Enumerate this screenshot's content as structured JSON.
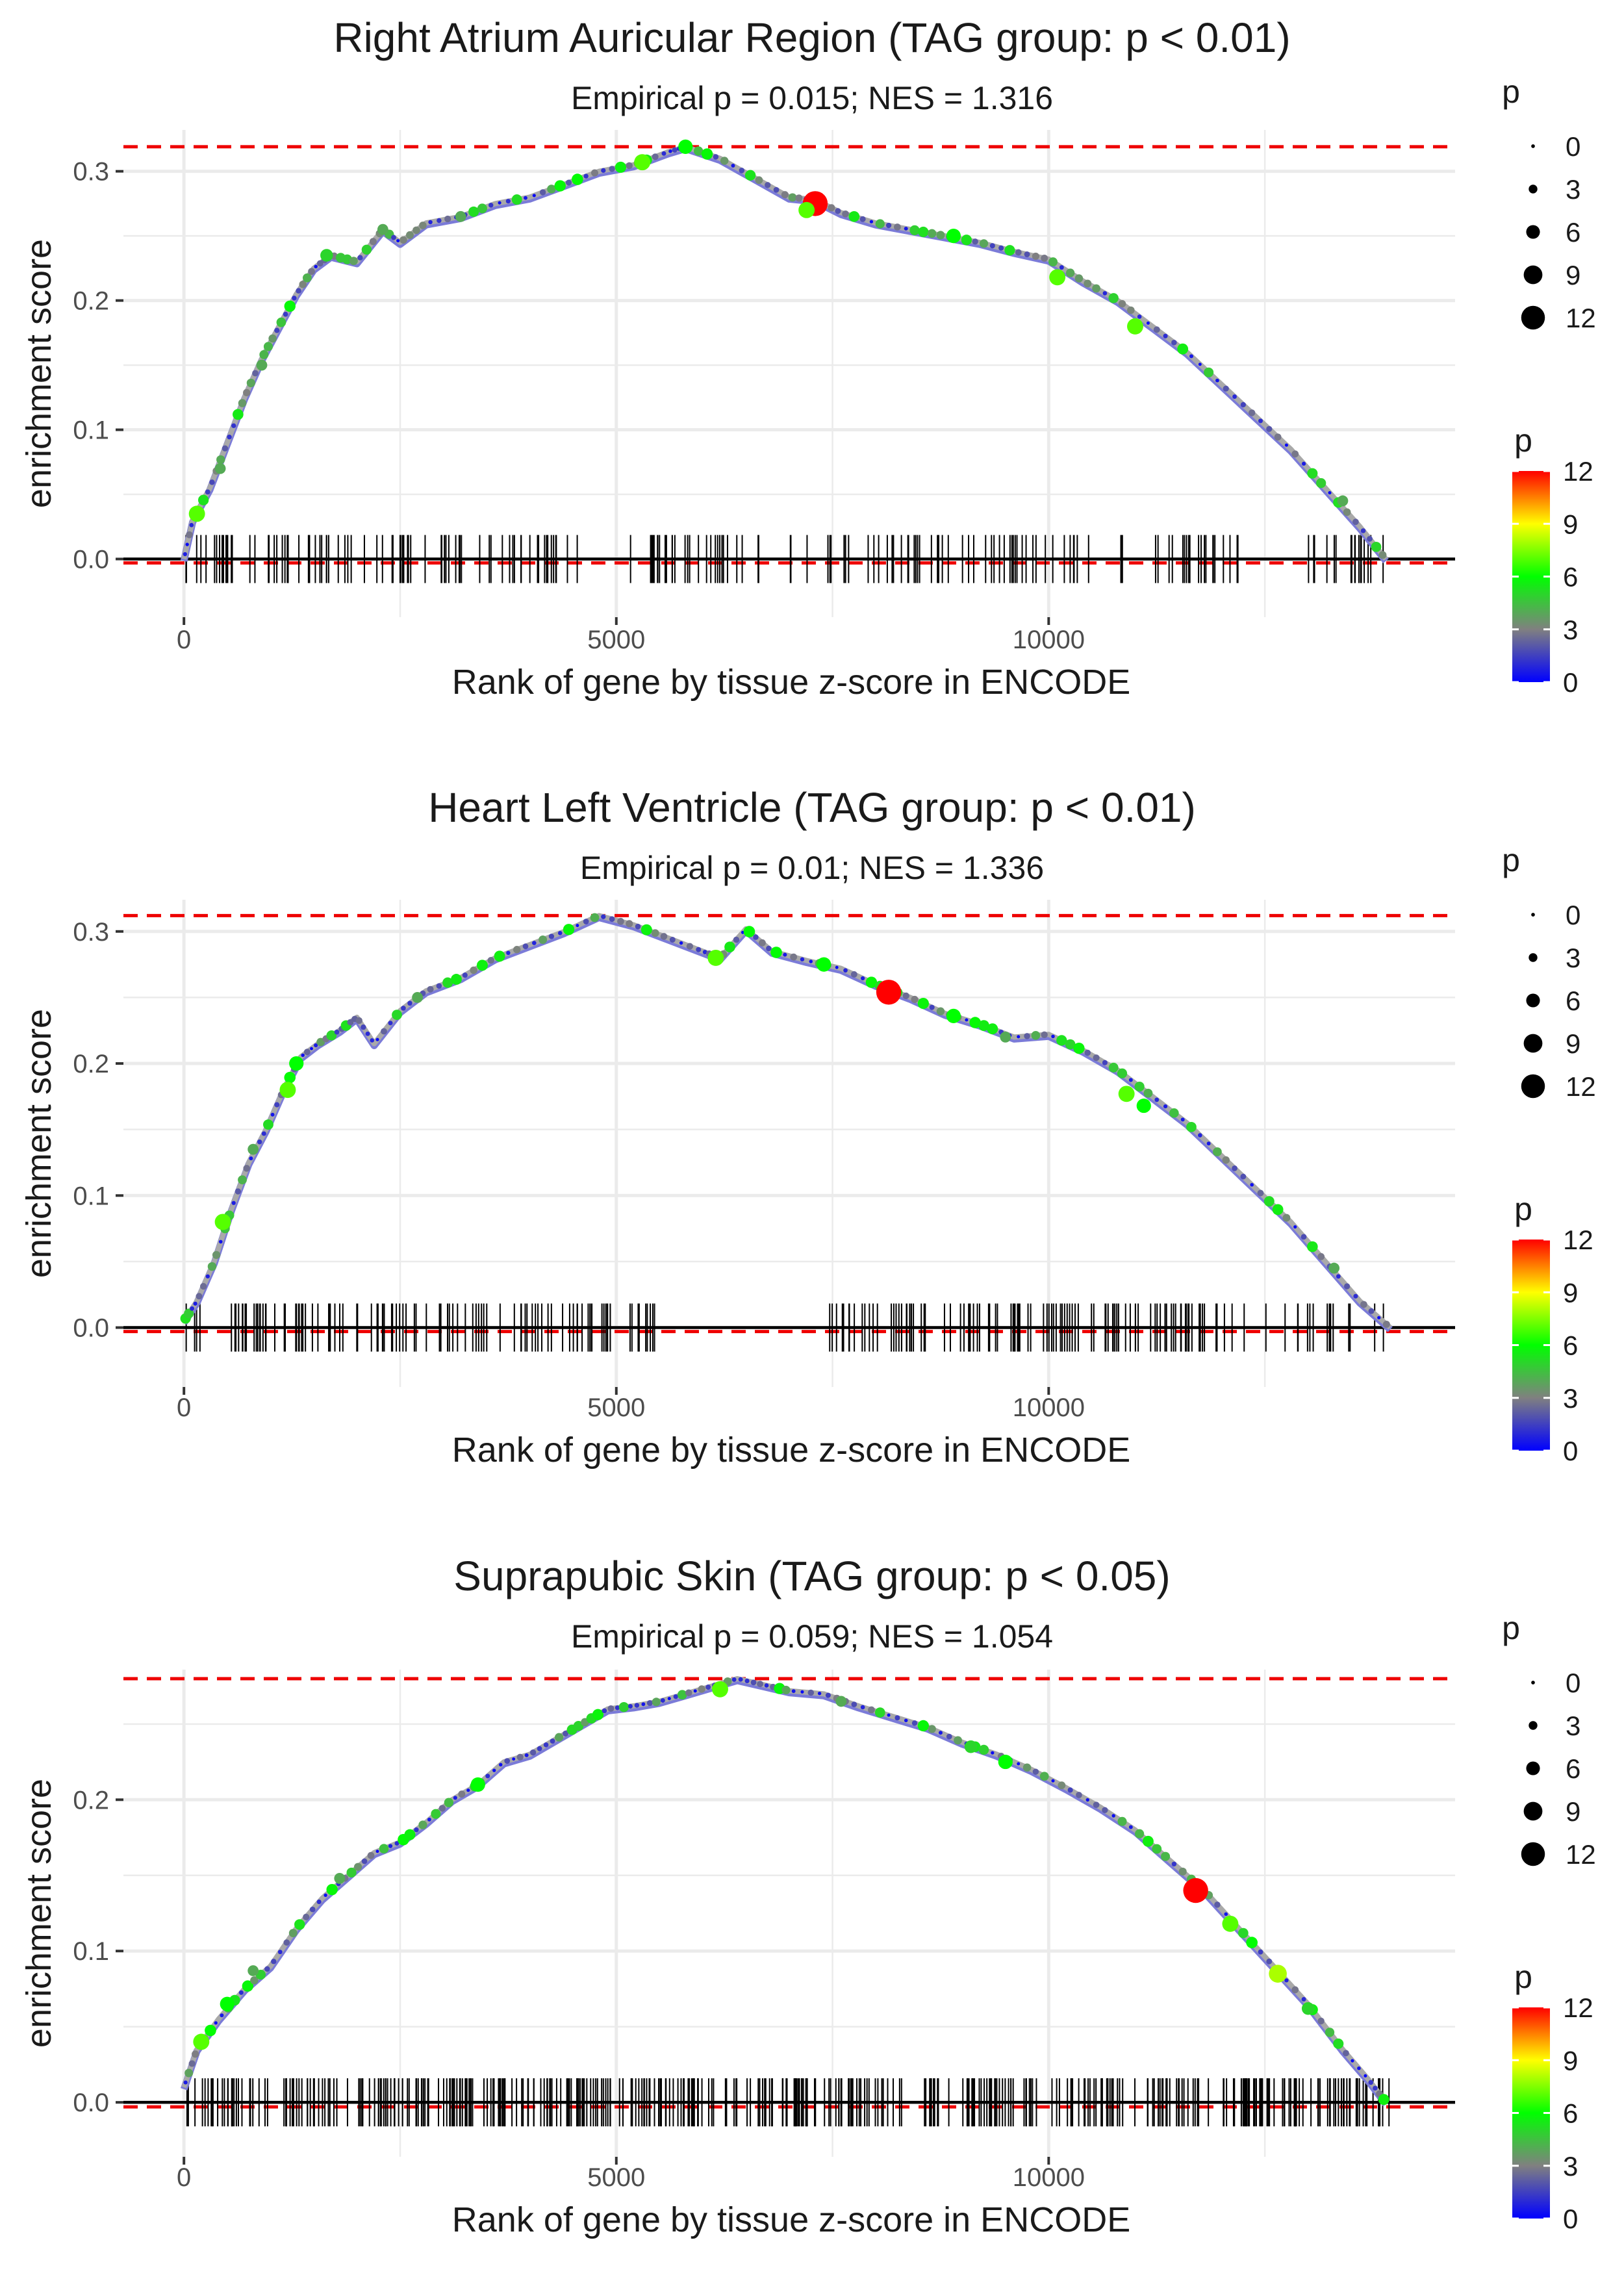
{
  "chart_data": [
    {
      "type": "line",
      "title": "Right Atrium Auricular Region (TAG group: p < 0.01)",
      "subtitle": "Empirical p = 0.015; NES = 1.316",
      "xlabel": "Rank of gene by tissue z-score in ENCODE",
      "ylabel": "enrichment score",
      "xlim": [
        -700,
        14700
      ],
      "ylim": [
        -0.045,
        0.332
      ],
      "x_ticks": [
        0,
        5000,
        10000
      ],
      "x_tick_labels": [
        "0",
        "5000",
        "10000"
      ],
      "y_ticks": [
        0.0,
        0.1,
        0.2,
        0.3
      ],
      "y_tick_labels": [
        "0.0",
        "0.1",
        "0.2",
        "0.3"
      ],
      "max_es": 0.319,
      "min_es": -0.003,
      "running_es": {
        "x": [
          0,
          100,
          300,
          500,
          700,
          900,
          1100,
          1300,
          1500,
          1700,
          2000,
          2300,
          2500,
          2800,
          3200,
          3600,
          4000,
          4400,
          4800,
          5200,
          5600,
          5800,
          6200,
          6600,
          7000,
          7300,
          7600,
          8000,
          8400,
          8800,
          9200,
          9600,
          10000,
          10400,
          10800,
          11200,
          11600,
          12000,
          12400,
          12800,
          13200,
          13600,
          13900
        ],
        "y": [
          0.0,
          0.03,
          0.055,
          0.09,
          0.125,
          0.155,
          0.18,
          0.205,
          0.225,
          0.235,
          0.23,
          0.255,
          0.245,
          0.26,
          0.265,
          0.275,
          0.28,
          0.29,
          0.3,
          0.305,
          0.315,
          0.319,
          0.31,
          0.295,
          0.28,
          0.278,
          0.268,
          0.26,
          0.255,
          0.25,
          0.245,
          0.238,
          0.232,
          0.215,
          0.2,
          0.18,
          0.16,
          0.135,
          0.11,
          0.085,
          0.055,
          0.025,
          0.0
        ]
      },
      "highlight_points": [
        {
          "x": 150,
          "es": 0.035,
          "p": 7
        },
        {
          "x": 420,
          "es": 0.07,
          "p": 4
        },
        {
          "x": 900,
          "es": 0.15,
          "p": 4
        },
        {
          "x": 1650,
          "es": 0.235,
          "p": 5
        },
        {
          "x": 2300,
          "es": 0.255,
          "p": 4
        },
        {
          "x": 3200,
          "es": 0.265,
          "p": 4
        },
        {
          "x": 5300,
          "es": 0.307,
          "p": 7
        },
        {
          "x": 5800,
          "es": 0.319,
          "p": 6
        },
        {
          "x": 7300,
          "es": 0.275,
          "p": 12
        },
        {
          "x": 7200,
          "es": 0.27,
          "p": 7
        },
        {
          "x": 8900,
          "es": 0.25,
          "p": 6
        },
        {
          "x": 10100,
          "es": 0.218,
          "p": 7
        },
        {
          "x": 11000,
          "es": 0.18,
          "p": 7
        },
        {
          "x": 13400,
          "es": 0.045,
          "p": 4
        }
      ],
      "gene_ticks": {
        "start": 0,
        "end": 13900,
        "count": 210,
        "gaps": [
          [
            4600,
            5150
          ],
          [
            6750,
            7000
          ],
          [
            10950,
            11200
          ],
          [
            12200,
            12850
          ]
        ]
      },
      "size_legend": {
        "title": "p",
        "values": [
          "0",
          "3",
          "6",
          "9",
          "12"
        ]
      },
      "color_legend": {
        "title": "p",
        "ticks": [
          "12",
          "9",
          "6",
          "3",
          "0"
        ]
      }
    },
    {
      "type": "line",
      "title": "Heart Left Ventricle (TAG group: p < 0.01)",
      "subtitle": "Empirical p = 0.01; NES = 1.336",
      "xlabel": "Rank of gene by tissue z-score in ENCODE",
      "ylabel": "enrichment score",
      "xlim": [
        -700,
        14700
      ],
      "ylim": [
        -0.045,
        0.324
      ],
      "x_ticks": [
        0,
        5000,
        10000
      ],
      "x_tick_labels": [
        "0",
        "5000",
        "10000"
      ],
      "y_ticks": [
        0.0,
        0.1,
        0.2,
        0.3
      ],
      "y_tick_labels": [
        "0.0",
        "0.1",
        "0.2",
        "0.3"
      ],
      "max_es": 0.312,
      "min_es": -0.003,
      "running_es": {
        "x": [
          0,
          150,
          350,
          550,
          750,
          950,
          1150,
          1350,
          1550,
          1800,
          2000,
          2200,
          2500,
          2800,
          3200,
          3600,
          4000,
          4400,
          4800,
          5200,
          5600,
          6000,
          6200,
          6500,
          6800,
          7200,
          7600,
          8000,
          8400,
          8800,
          9200,
          9600,
          10000,
          10400,
          10800,
          11200,
          11600,
          12000,
          12400,
          12800,
          13200,
          13600,
          13950
        ],
        "y": [
          0.005,
          0.02,
          0.05,
          0.09,
          0.125,
          0.15,
          0.18,
          0.205,
          0.215,
          0.225,
          0.235,
          0.215,
          0.24,
          0.255,
          0.265,
          0.28,
          0.29,
          0.3,
          0.312,
          0.305,
          0.295,
          0.285,
          0.28,
          0.302,
          0.285,
          0.278,
          0.272,
          0.26,
          0.25,
          0.238,
          0.23,
          0.22,
          0.222,
          0.21,
          0.195,
          0.175,
          0.155,
          0.13,
          0.105,
          0.08,
          0.05,
          0.02,
          0.0
        ]
      },
      "highlight_points": [
        {
          "x": 450,
          "es": 0.08,
          "p": 7
        },
        {
          "x": 800,
          "es": 0.135,
          "p": 4
        },
        {
          "x": 1200,
          "es": 0.18,
          "p": 7
        },
        {
          "x": 1300,
          "es": 0.2,
          "p": 6
        },
        {
          "x": 2700,
          "es": 0.25,
          "p": 4
        },
        {
          "x": 6150,
          "es": 0.28,
          "p": 7
        },
        {
          "x": 7400,
          "es": 0.275,
          "p": 6
        },
        {
          "x": 8150,
          "es": 0.254,
          "p": 12
        },
        {
          "x": 8900,
          "es": 0.236,
          "p": 6
        },
        {
          "x": 9500,
          "es": 0.22,
          "p": 4
        },
        {
          "x": 10900,
          "es": 0.177,
          "p": 7
        },
        {
          "x": 11100,
          "es": 0.168,
          "p": 6
        },
        {
          "x": 13300,
          "es": 0.045,
          "p": 4
        }
      ],
      "gene_ticks": {
        "start": 0,
        "end": 13950,
        "count": 230,
        "gaps": [
          [
            4950,
            5150
          ],
          [
            5450,
            7450
          ]
        ]
      },
      "size_legend": {
        "title": "p",
        "values": [
          "0",
          "3",
          "6",
          "9",
          "12"
        ]
      },
      "color_legend": {
        "title": "p",
        "ticks": [
          "12",
          "9",
          "6",
          "3",
          "0"
        ]
      }
    },
    {
      "type": "line",
      "title": "Suprapubic Skin (TAG group: p < 0.05)",
      "subtitle": "Empirical p = 0.059; NES = 1.054",
      "xlabel": "Rank of gene by tissue z-score in ENCODE",
      "ylabel": "enrichment score",
      "xlim": [
        -700,
        14700
      ],
      "ylim": [
        -0.036,
        0.286
      ],
      "x_ticks": [
        0,
        5000,
        10000
      ],
      "x_tick_labels": [
        "0",
        "5000",
        "10000"
      ],
      "y_ticks": [
        0.0,
        0.1,
        0.2
      ],
      "y_tick_labels": [
        "0.0",
        "0.1",
        "0.2"
      ],
      "max_es": 0.28,
      "min_es": -0.003,
      "running_es": {
        "x": [
          0,
          150,
          400,
          700,
          1000,
          1300,
          1600,
          1900,
          2200,
          2500,
          2800,
          3100,
          3400,
          3700,
          4000,
          4300,
          4600,
          4900,
          5200,
          5500,
          5800,
          6100,
          6400,
          6700,
          7000,
          7400,
          7800,
          8200,
          8600,
          9000,
          9400,
          9800,
          10200,
          10600,
          11000,
          11400,
          11800,
          12200,
          12600,
          13000,
          13400,
          13700,
          13900
        ],
        "y": [
          0.01,
          0.035,
          0.055,
          0.075,
          0.09,
          0.115,
          0.135,
          0.15,
          0.165,
          0.172,
          0.185,
          0.2,
          0.21,
          0.225,
          0.23,
          0.24,
          0.25,
          0.26,
          0.262,
          0.265,
          0.27,
          0.275,
          0.28,
          0.276,
          0.272,
          0.27,
          0.262,
          0.255,
          0.248,
          0.238,
          0.23,
          0.22,
          0.208,
          0.195,
          0.18,
          0.16,
          0.14,
          0.115,
          0.09,
          0.065,
          0.035,
          0.015,
          0.0
        ]
      },
      "highlight_points": [
        {
          "x": 200,
          "es": 0.04,
          "p": 7
        },
        {
          "x": 500,
          "es": 0.065,
          "p": 6
        },
        {
          "x": 800,
          "es": 0.087,
          "p": 4
        },
        {
          "x": 1800,
          "es": 0.148,
          "p": 4
        },
        {
          "x": 3400,
          "es": 0.21,
          "p": 6
        },
        {
          "x": 6200,
          "es": 0.273,
          "p": 7
        },
        {
          "x": 7600,
          "es": 0.265,
          "p": 4
        },
        {
          "x": 9100,
          "es": 0.235,
          "p": 5
        },
        {
          "x": 9500,
          "es": 0.225,
          "p": 6
        },
        {
          "x": 11700,
          "es": 0.14,
          "p": 12
        },
        {
          "x": 12100,
          "es": 0.118,
          "p": 7
        },
        {
          "x": 12650,
          "es": 0.085,
          "p": 8
        },
        {
          "x": 13000,
          "es": 0.062,
          "p": 5
        }
      ],
      "gene_ticks": {
        "start": 0,
        "end": 13950,
        "count": 420,
        "gaps": []
      },
      "size_legend": {
        "title": "p",
        "values": [
          "0",
          "3",
          "6",
          "9",
          "12"
        ]
      },
      "color_legend": {
        "title": "p",
        "ticks": [
          "12",
          "9",
          "6",
          "3",
          "0"
        ]
      }
    }
  ],
  "colors": {
    "curve": "#a9a9a9",
    "curve_shadow": "#7b7bd8",
    "max_line": "#ee0000",
    "zero_line": "#000000",
    "gene_tick": "#000000",
    "grid": "#ebebeb",
    "gradient": [
      "#0000ff",
      "#808080",
      "#00ff00",
      "#ffff00",
      "#ff0000"
    ]
  }
}
